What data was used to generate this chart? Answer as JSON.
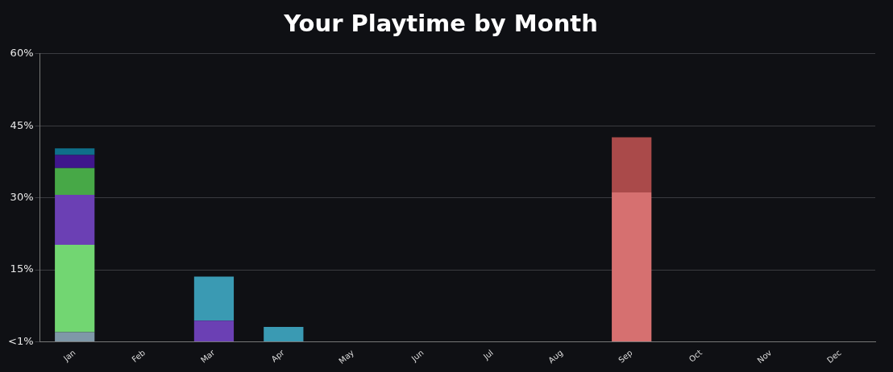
{
  "chart_data": {
    "type": "bar",
    "title": "Your Playtime by Month",
    "stacked": true,
    "grid": "y",
    "legend": false,
    "categories": [
      "Jan",
      "Feb",
      "Mar",
      "Apr",
      "May",
      "Jun",
      "Jul",
      "Aug",
      "Sep",
      "Oct",
      "Nov",
      "Dec"
    ],
    "ylim": [
      0,
      60
    ],
    "yticks": [
      {
        "value": 0,
        "label": "<1%"
      },
      {
        "value": 15,
        "label": "15%"
      },
      {
        "value": 30,
        "label": "30%"
      },
      {
        "value": 45,
        "label": "45%"
      },
      {
        "value": 60,
        "label": "60%"
      }
    ],
    "series": [
      {
        "color": "#7f98a8",
        "values": [
          2.0,
          null,
          null,
          null,
          null,
          null,
          null,
          null,
          null,
          null,
          null,
          null
        ]
      },
      {
        "color": "#72d672",
        "values": [
          18.2,
          null,
          null,
          null,
          null,
          null,
          null,
          null,
          null,
          null,
          null,
          null
        ]
      },
      {
        "color": "#6b40b4",
        "values": [
          10.4,
          null,
          4.4,
          null,
          null,
          null,
          null,
          null,
          null,
          null,
          null,
          null
        ]
      },
      {
        "color": "#47a847",
        "values": [
          5.6,
          null,
          null,
          null,
          null,
          null,
          null,
          null,
          null,
          null,
          null,
          null
        ]
      },
      {
        "color": "#3f168c",
        "values": [
          2.7,
          null,
          null,
          null,
          null,
          null,
          null,
          null,
          null,
          null,
          null,
          null
        ]
      },
      {
        "color": "#0f6f8a",
        "values": [
          1.4,
          null,
          null,
          null,
          null,
          null,
          null,
          null,
          null,
          null,
          null,
          null
        ]
      },
      {
        "color": "#3a9ab3",
        "values": [
          null,
          null,
          9.2,
          3.1,
          null,
          null,
          null,
          null,
          null,
          null,
          null,
          null
        ]
      },
      {
        "color": "#d67070",
        "values": [
          null,
          null,
          null,
          null,
          null,
          null,
          null,
          null,
          31.1,
          null,
          null,
          null
        ]
      },
      {
        "color": "#aa4a4a",
        "values": [
          null,
          null,
          null,
          null,
          null,
          null,
          null,
          null,
          11.5,
          null,
          null,
          null
        ]
      }
    ]
  }
}
